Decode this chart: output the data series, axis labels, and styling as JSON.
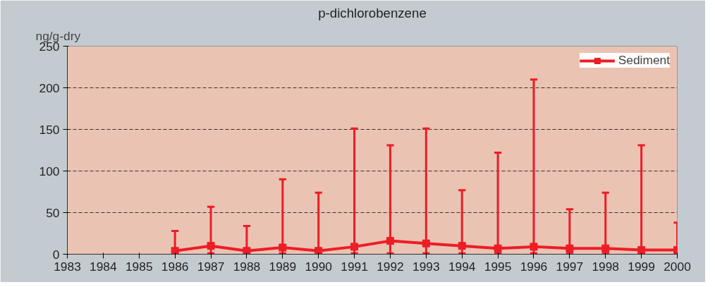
{
  "chart_data": {
    "type": "line",
    "title": "p-dichlorobenzene",
    "ylabel": "ng/g-dry",
    "x": [
      1986,
      1987,
      1988,
      1989,
      1990,
      1991,
      1992,
      1993,
      1994,
      1995,
      1996,
      1997,
      1998,
      1999,
      2000
    ],
    "series": [
      {
        "name": "Sediment",
        "color": "#ee1c25",
        "values": [
          4,
          10,
          4,
          8,
          4,
          9,
          16,
          13,
          10,
          7,
          9,
          7,
          7,
          5,
          5
        ],
        "errors": [
          [
            1,
            28
          ],
          [
            1,
            57
          ],
          [
            1,
            34
          ],
          [
            1,
            90
          ],
          [
            1,
            74
          ],
          [
            1,
            151
          ],
          [
            1,
            131
          ],
          [
            1,
            151
          ],
          [
            1,
            77
          ],
          [
            1,
            122
          ],
          [
            1,
            210
          ],
          [
            1,
            54
          ],
          [
            1,
            74
          ],
          [
            1,
            131
          ],
          [
            1,
            38
          ]
        ]
      }
    ],
    "xlim": [
      1983,
      2000
    ],
    "xticks": [
      1983,
      1984,
      1985,
      1986,
      1987,
      1988,
      1989,
      1990,
      1991,
      1992,
      1993,
      1994,
      1995,
      1996,
      1997,
      1998,
      1999,
      2000
    ],
    "ylim": [
      0,
      250
    ],
    "yticks": [
      0,
      50,
      100,
      150,
      200,
      250
    ],
    "grid": "y",
    "legend": "top right",
    "marker": "square",
    "line_style": "solid"
  }
}
